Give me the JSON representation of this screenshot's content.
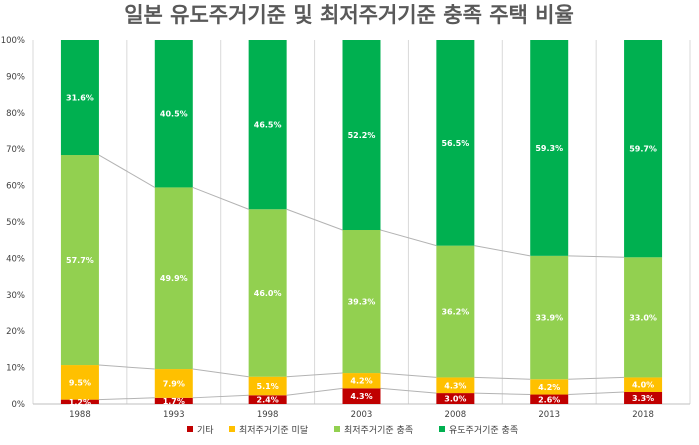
{
  "chart_data": {
    "type": "bar",
    "stacked": true,
    "title": "일본 유도주거기준 및 최저주거기준 충족 주택 비율",
    "categories": [
      "1988",
      "1993",
      "1998",
      "2003",
      "2008",
      "2013",
      "2018"
    ],
    "ylim": [
      0,
      100
    ],
    "y_ticks": [
      "0%",
      "10%",
      "20%",
      "30%",
      "40%",
      "50%",
      "60%",
      "70%",
      "80%",
      "90%",
      "100%"
    ],
    "grid": "vertical",
    "legend_position": "bottom",
    "series_lines": true,
    "series": [
      {
        "name": "기타",
        "color": "#c00000",
        "values": [
          1.2,
          1.7,
          2.4,
          4.3,
          3.0,
          2.6,
          3.3
        ],
        "labels": [
          "1.2%",
          "1.7%",
          "2.4%",
          "4.3%",
          "3.0%",
          "2.6%",
          "3.3%"
        ]
      },
      {
        "name": "최저주거기준 미달",
        "color": "#ffc000",
        "values": [
          9.5,
          7.9,
          5.1,
          4.2,
          4.3,
          4.2,
          4.0
        ],
        "labels": [
          "9.5%",
          "7.9%",
          "5.1%",
          "4.2%",
          "4.3%",
          "4.2%",
          "4.0%"
        ]
      },
      {
        "name": "최저주거기준 충족",
        "color": "#92d050",
        "values": [
          57.7,
          49.9,
          46.0,
          39.3,
          36.2,
          33.9,
          33.0
        ],
        "labels": [
          "57.7%",
          "49.9%",
          "46.0%",
          "39.3%",
          "36.2%",
          "33.9%",
          "33.0%"
        ]
      },
      {
        "name": "유도주거기준 충족",
        "color": "#00b050",
        "values": [
          31.6,
          40.5,
          46.5,
          52.2,
          56.5,
          59.3,
          59.7
        ],
        "labels": [
          "31.6%",
          "40.5%",
          "46.5%",
          "52.2%",
          "56.5%",
          "59.3%",
          "59.7%"
        ]
      }
    ]
  }
}
